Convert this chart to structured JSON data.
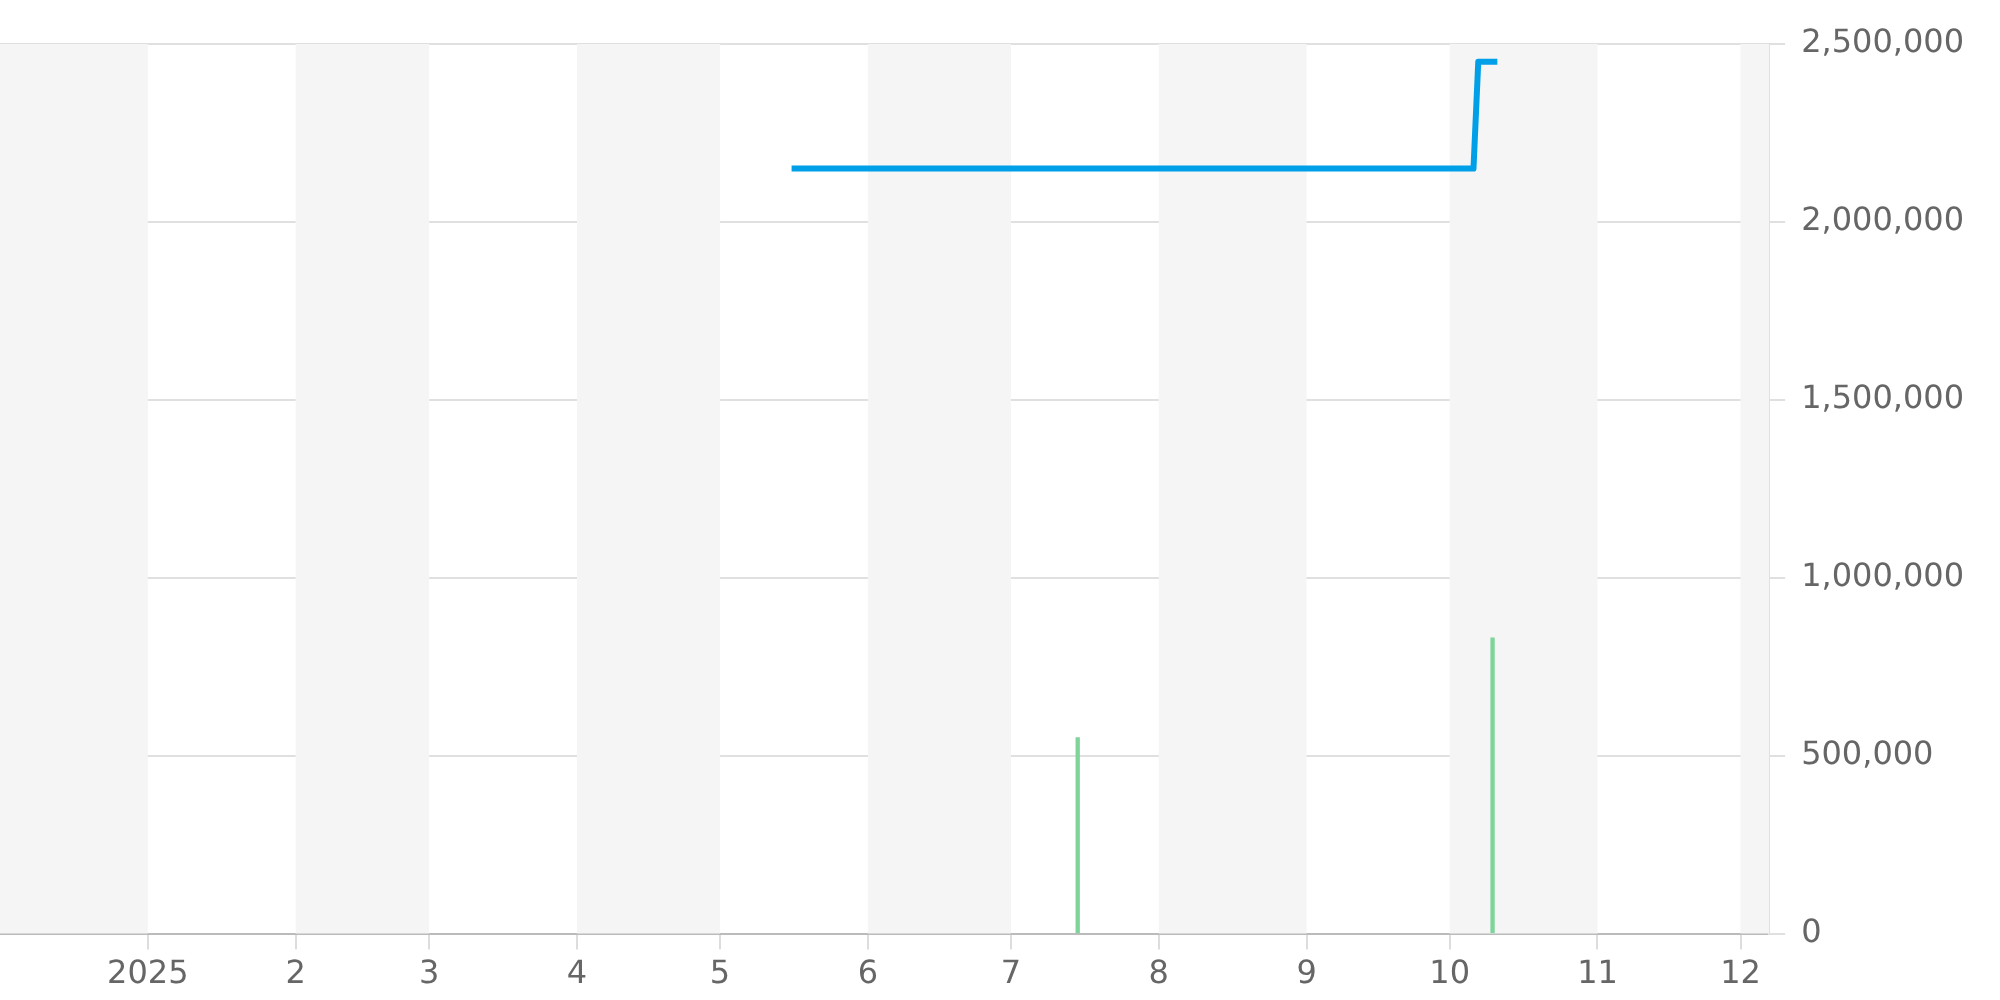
{
  "chart_data": {
    "type": "line",
    "xlim": [
      "2024-12-01",
      "2025-12-07"
    ],
    "xticks": [
      {
        "value": "2025-01-01",
        "label": "2025"
      },
      {
        "value": "2025-02-01",
        "label": "2"
      },
      {
        "value": "2025-03-01",
        "label": "3"
      },
      {
        "value": "2025-04-01",
        "label": "4"
      },
      {
        "value": "2025-05-01",
        "label": "5"
      },
      {
        "value": "2025-06-01",
        "label": "6"
      },
      {
        "value": "2025-07-01",
        "label": "7"
      },
      {
        "value": "2025-08-01",
        "label": "8"
      },
      {
        "value": "2025-09-01",
        "label": "9"
      },
      {
        "value": "2025-10-01",
        "label": "10"
      },
      {
        "value": "2025-11-01",
        "label": "11"
      },
      {
        "value": "2025-12-01",
        "label": "12"
      }
    ],
    "ylim": [
      0,
      2500000
    ],
    "yticks": [
      0,
      {
        "value": 500000,
        "label": "500,000"
      },
      {
        "value": 1000000,
        "label": "1,000,000"
      },
      {
        "value": 1500000,
        "label": "1,500,000"
      },
      {
        "value": 2000000,
        "label": "2,000,000"
      },
      {
        "value": 2500000,
        "label": "2,500,000"
      }
    ],
    "grid": "y",
    "legend": false,
    "marker": "none",
    "bands": [
      {
        "axis": "x",
        "from": "2024-12-01",
        "to": "2025-01-01",
        "color": "#f5f5f5"
      },
      {
        "axis": "x",
        "from": "2025-02-01",
        "to": "2025-03-01",
        "color": "#f5f5f5"
      },
      {
        "axis": "x",
        "from": "2025-04-01",
        "to": "2025-05-01",
        "color": "#f5f5f5"
      },
      {
        "axis": "x",
        "from": "2025-06-01",
        "to": "2025-07-01",
        "color": "#f5f5f5"
      },
      {
        "axis": "x",
        "from": "2025-08-01",
        "to": "2025-09-01",
        "color": "#f5f5f5"
      },
      {
        "axis": "x",
        "from": "2025-10-01",
        "to": "2025-11-01",
        "color": "#f5f5f5"
      },
      {
        "axis": "x",
        "from": "2025-12-01",
        "to": "2025-12-07",
        "color": "#f5f5f5"
      }
    ],
    "series": [
      {
        "color": "#00a0e9",
        "x": [
          "2025-05-16",
          "2025-10-06",
          "2025-10-07",
          "2025-10-11"
        ],
        "values": [
          2150000,
          2150000,
          2450000,
          2450000
        ]
      },
      {
        "type": "bar",
        "color": "#7fd49a",
        "x": [
          "2025-07-15",
          "2025-10-10"
        ],
        "values": [
          550000,
          830000
        ]
      }
    ]
  }
}
